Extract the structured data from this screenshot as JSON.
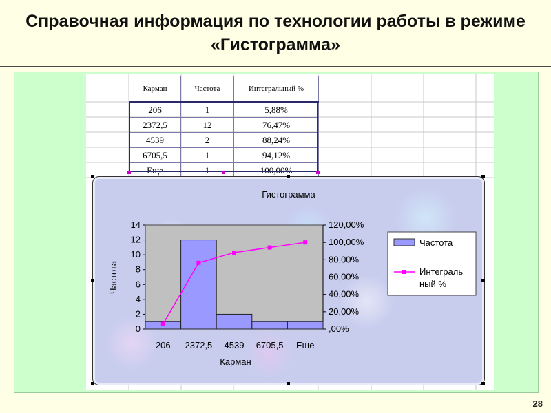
{
  "slide": {
    "title": "Справочная информация по технологии работы в режиме «Гистограмма»",
    "page_number": "28"
  },
  "table": {
    "headers": [
      "Карман",
      "Частота",
      "Интегральный %"
    ],
    "rows": [
      [
        "206",
        "1",
        "5,88%"
      ],
      [
        "2372,5",
        "12",
        "76,47%"
      ],
      [
        "4539",
        "2",
        "88,24%"
      ],
      [
        "6705,5",
        "1",
        "94,12%"
      ],
      [
        "Еще",
        "1",
        "100,00%"
      ]
    ]
  },
  "colors": {
    "bar_fill": "#9999ff",
    "line": "#ff00ff",
    "plot_bg": "#c0c0c0",
    "panel": "#ccffcc"
  },
  "chart_data": {
    "type": "bar",
    "title": "Гистограмма",
    "xlabel": "Карман",
    "ylabel": "Частота",
    "categories": [
      "206",
      "2372,5",
      "4539",
      "6705,5",
      "Еще"
    ],
    "ylim": [
      0,
      14
    ],
    "y_ticks": [
      "0",
      "2",
      "4",
      "6",
      "8",
      "10",
      "12",
      "14"
    ],
    "y2lim": [
      0,
      120
    ],
    "y2_ticks": [
      ",00%",
      "20,00%",
      "40,00%",
      "60,00%",
      "80,00%",
      "100,00%",
      "120,00%"
    ],
    "series": [
      {
        "name": "Частота",
        "type": "bar",
        "axis": "left",
        "values": [
          1,
          12,
          2,
          1,
          1
        ]
      },
      {
        "name": "Интегральный %",
        "type": "line",
        "axis": "right",
        "values": [
          5.88,
          76.47,
          88.24,
          94.12,
          100
        ]
      }
    ],
    "legend_labels": [
      "Частота",
      "Интеграль",
      "ный %"
    ],
    "legend_position": "right",
    "grid": false
  }
}
